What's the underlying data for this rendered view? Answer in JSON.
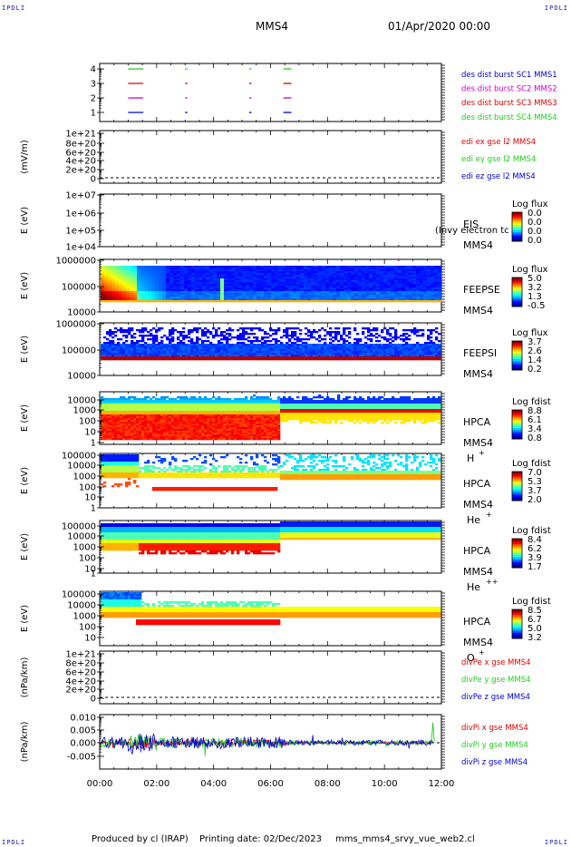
{
  "corners": {
    "tl": "IPDLI",
    "tr": "IPDLI",
    "bl": "IPDLI",
    "br": "IPDLI"
  },
  "header": {
    "spacecraft": "MMS4",
    "datetime": "01/Apr/2020 00:00"
  },
  "footer": {
    "produced_by": "Produced by cl (IRAP)",
    "printing_date": "Printing date: 02/Dec/2023",
    "filename": "mms_mms4_srvy_vue_web2.cl"
  },
  "colors": {
    "red": "#dd0000",
    "green": "#22cc22",
    "blue": "#0000cc",
    "magenta": "#cc00cc"
  },
  "chart_data": [
    {
      "type": "line",
      "id": "burst",
      "y_ticks": [
        "4",
        "3",
        "2",
        "1"
      ],
      "series": [
        {
          "name": "des dist burst SC1 MMS1",
          "color": "#0000cc",
          "y": 1,
          "segments": [
            [
              1.0,
              1.5
            ],
            [
              3.0,
              3.05
            ],
            [
              5.25,
              5.3
            ],
            [
              6.45,
              6.7
            ]
          ]
        },
        {
          "name": "des dist burst SC2 MMS2",
          "color": "#cc00cc",
          "y": 2,
          "segments": [
            [
              1.0,
              1.5
            ],
            [
              3.0,
              3.05
            ],
            [
              5.25,
              5.3
            ],
            [
              6.45,
              6.7
            ]
          ]
        },
        {
          "name": "des dist burst SC3 MMS3",
          "color": "#dd0000",
          "y": 3,
          "segments": [
            [
              1.0,
              1.5
            ],
            [
              3.0,
              3.05
            ],
            [
              5.25,
              5.3
            ],
            [
              6.45,
              6.7
            ]
          ]
        },
        {
          "name": "des dist burst SC4 MMS4",
          "color": "#22cc22",
          "y": 4,
          "segments": [
            [
              1.0,
              1.5
            ],
            [
              3.0,
              3.05
            ],
            [
              5.25,
              5.3
            ],
            [
              6.45,
              6.7
            ]
          ]
        }
      ]
    },
    {
      "type": "line",
      "id": "edi",
      "ylabel": "(mV/m)",
      "y_ticks": [
        "1e+21",
        "8e+20",
        "6e+20",
        "4e+20",
        "2e+20",
        "0"
      ],
      "series": [
        {
          "name": "edi ex gse l2 MMS4",
          "color": "#dd0000"
        },
        {
          "name": "edi ey gse l2 MMS4",
          "color": "#22cc22"
        },
        {
          "name": "edi ez gse l2 MMS4",
          "color": "#0000cc"
        }
      ]
    },
    {
      "type": "heatmap",
      "id": "eis",
      "ylabel": "E (eV)",
      "y_ticks": [
        "1e+07",
        "1e+06",
        "1e+05",
        "1e+04"
      ],
      "instrument": "EIS",
      "spacecraft": "MMS4",
      "overlay": "(Invy electron tc",
      "cbar_title": "Log flux",
      "cbar_ticks": [
        "0.0",
        "0.0",
        "0.0",
        "0.0"
      ]
    },
    {
      "type": "heatmap",
      "id": "feepse",
      "ylabel": "E (eV)",
      "y_ticks": [
        "1000000",
        "100000",
        "10000"
      ],
      "instrument": "FEEPSE",
      "spacecraft": "MMS4",
      "cbar_title": "Log flux",
      "cbar_ticks": [
        "5.0",
        "3.2",
        "1.3",
        "-0.5"
      ]
    },
    {
      "type": "heatmap",
      "id": "feepsi",
      "ylabel": "E (eV)",
      "y_ticks": [
        "1000000",
        "100000",
        "10000"
      ],
      "instrument": "FEEPSI",
      "spacecraft": "MMS4",
      "cbar_title": "Log flux",
      "cbar_ticks": [
        "3.7",
        "2.6",
        "1.4",
        "0.2"
      ]
    },
    {
      "type": "heatmap",
      "id": "hpca_h",
      "ylabel": "E (eV)",
      "y_ticks": [
        "10000",
        "1000",
        "100",
        "10",
        "1"
      ],
      "instrument": "HPCA",
      "spacecraft": "MMS4",
      "species": "H",
      "charge": "+",
      "cbar_title": "Log fdist",
      "cbar_ticks": [
        "8.8",
        "6.1",
        "3.4",
        "0.8"
      ]
    },
    {
      "type": "heatmap",
      "id": "hpca_he",
      "ylabel": "E (eV)",
      "y_ticks": [
        "100000",
        "10000",
        "1000",
        "100",
        "10",
        "1"
      ],
      "instrument": "HPCA",
      "spacecraft": "MMS4",
      "species": "He",
      "charge": "+",
      "cbar_title": "Log fdist",
      "cbar_ticks": [
        "7.0",
        "5.3",
        "3.7",
        "2.0"
      ]
    },
    {
      "type": "heatmap",
      "id": "hpca_hepp",
      "ylabel": "E (eV)",
      "y_ticks": [
        "100000",
        "10000",
        "1000",
        "100",
        "10",
        "1"
      ],
      "instrument": "HPCA",
      "spacecraft": "MMS4",
      "species": "He",
      "charge": "++",
      "cbar_title": "Log fdist",
      "cbar_ticks": [
        "8.4",
        "6.2",
        "3.9",
        "1.7"
      ]
    },
    {
      "type": "heatmap",
      "id": "hpca_o",
      "ylabel": "E (eV)",
      "y_ticks": [
        "100000",
        "10000",
        "1000",
        "100",
        "10"
      ],
      "instrument": "HPCA",
      "spacecraft": "MMS4",
      "species": "O",
      "charge": "+",
      "cbar_title": "Log fdist",
      "cbar_ticks": [
        "8.5",
        "6.7",
        "5.0",
        "3.2"
      ]
    },
    {
      "type": "line",
      "id": "divpe",
      "ylabel": "(nPa/km)",
      "y_ticks": [
        "1e+21",
        "8e+20",
        "6e+20",
        "4e+20",
        "2e+20",
        "0"
      ],
      "series": [
        {
          "name": "divPe x gse MMS4",
          "color": "#dd0000"
        },
        {
          "name": "divPe y gse MMS4",
          "color": "#22cc22"
        },
        {
          "name": "divPe z gse MMS4",
          "color": "#0000cc"
        }
      ]
    },
    {
      "type": "line",
      "id": "divpi",
      "ylabel": "(nPa/km)",
      "y_ticks": [
        "0.010",
        "0.005",
        "0.000",
        "-0.005"
      ],
      "ylim": [
        -0.01,
        0.012
      ],
      "series": [
        {
          "name": "divPi x gse MMS4",
          "color": "#dd0000"
        },
        {
          "name": "divPi y gse MMS4",
          "color": "#22cc22"
        },
        {
          "name": "divPi z gse MMS4",
          "color": "#0000cc"
        }
      ]
    }
  ],
  "x_axis": {
    "ticks": [
      "00:00",
      "02:00",
      "04:00",
      "06:00",
      "08:00",
      "10:00",
      "12:00"
    ],
    "range_hours": [
      0,
      12
    ]
  }
}
